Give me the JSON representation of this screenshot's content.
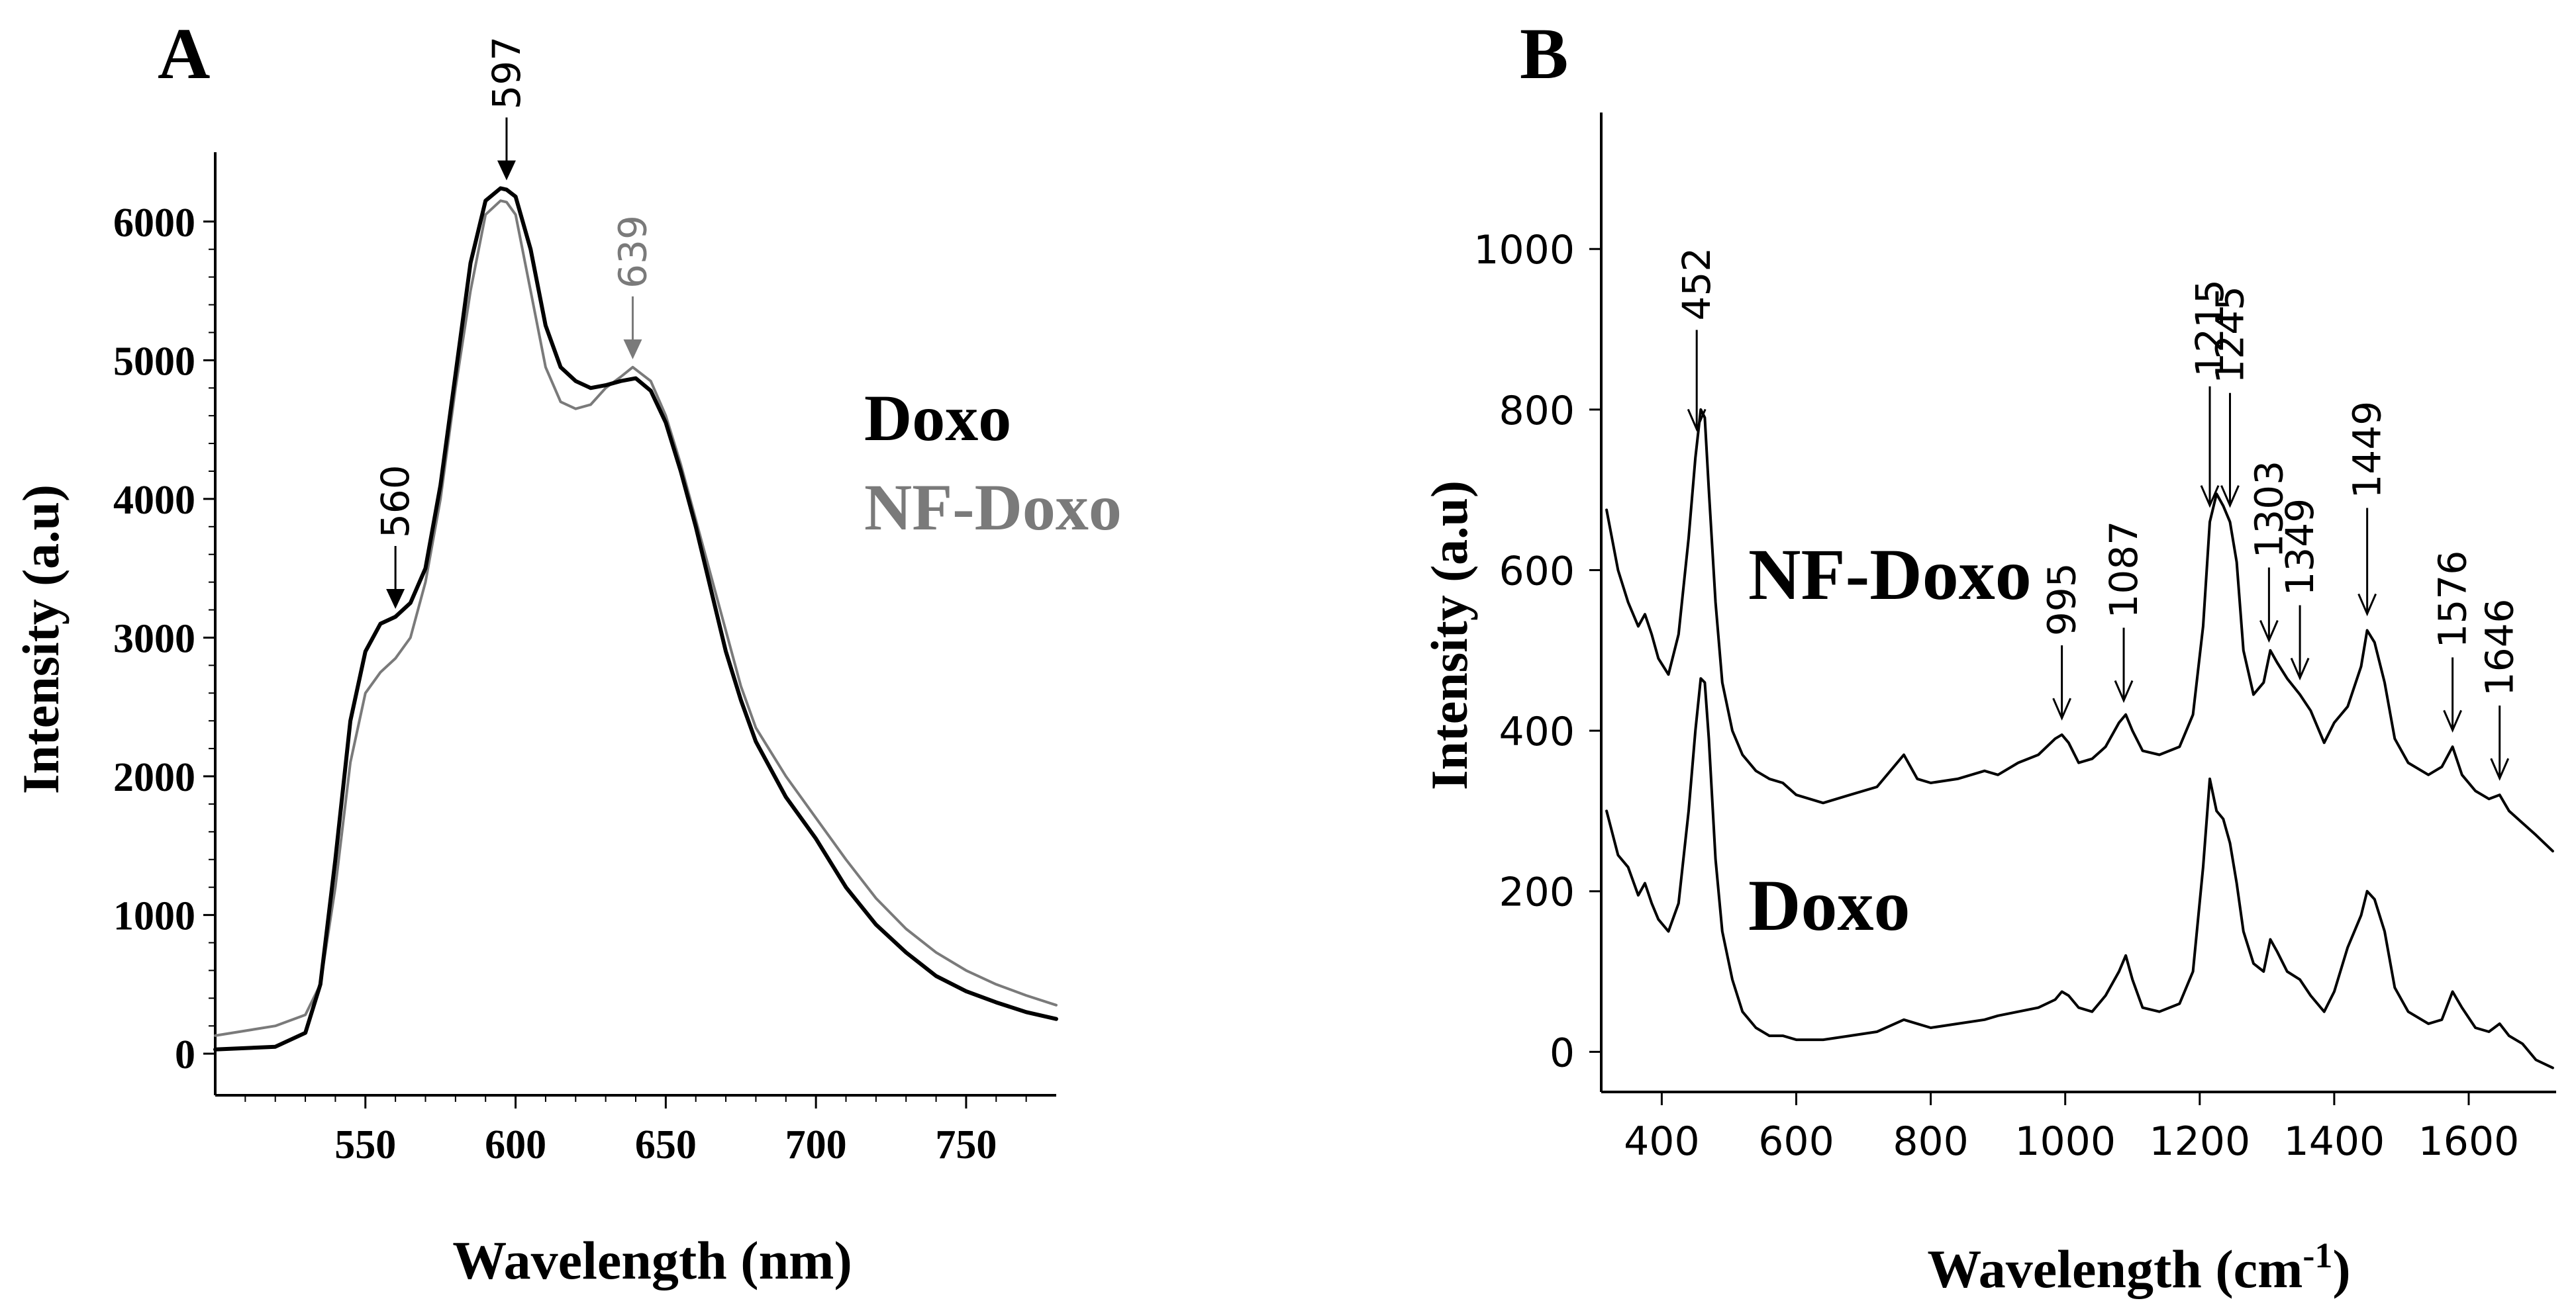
{
  "figure": {
    "colors": {
      "black": "#000000",
      "gray": "#7a7a7a"
    }
  },
  "chart_data": [
    {
      "panel": "A",
      "type": "line",
      "xlabel": "Wavelength (nm)",
      "ylabel": "Intensity (a.u)",
      "xlim": [
        500,
        780
      ],
      "ylim": [
        -300,
        6500
      ],
      "xticks": [
        550,
        600,
        650,
        700,
        750
      ],
      "yticks": [
        0,
        1000,
        2000,
        3000,
        4000,
        5000,
        6000
      ],
      "legend": [
        {
          "label": "Doxo",
          "color": "#000000"
        },
        {
          "label": "NF-Doxo",
          "color": "#7a7a7a"
        }
      ],
      "legend_placement": "right",
      "series": [
        {
          "name": "Doxo",
          "color": "#000000",
          "x": [
            500,
            520,
            530,
            535,
            540,
            545,
            550,
            555,
            560,
            565,
            570,
            575,
            580,
            585,
            590,
            595,
            597,
            600,
            605,
            610,
            615,
            620,
            625,
            630,
            635,
            640,
            645,
            650,
            655,
            660,
            665,
            670,
            675,
            680,
            690,
            700,
            710,
            720,
            730,
            740,
            750,
            760,
            770,
            780
          ],
          "y": [
            30,
            50,
            150,
            500,
            1400,
            2400,
            2900,
            3100,
            3150,
            3250,
            3500,
            4100,
            4900,
            5700,
            6150,
            6240,
            6230,
            6180,
            5800,
            5250,
            4950,
            4850,
            4800,
            4820,
            4850,
            4870,
            4780,
            4550,
            4200,
            3800,
            3350,
            2900,
            2550,
            2250,
            1850,
            1550,
            1200,
            930,
            730,
            560,
            450,
            370,
            300,
            250
          ]
        },
        {
          "name": "NF-Doxo",
          "color": "#7a7a7a",
          "x": [
            500,
            520,
            530,
            535,
            540,
            545,
            550,
            555,
            560,
            565,
            570,
            575,
            580,
            585,
            590,
            595,
            597,
            600,
            605,
            610,
            615,
            620,
            625,
            630,
            635,
            639,
            645,
            650,
            655,
            660,
            665,
            670,
            675,
            680,
            690,
            700,
            710,
            720,
            730,
            740,
            750,
            760,
            770,
            780
          ],
          "y": [
            130,
            200,
            280,
            500,
            1200,
            2100,
            2600,
            2750,
            2850,
            3000,
            3400,
            4000,
            4800,
            5500,
            6050,
            6150,
            6140,
            6050,
            5500,
            4950,
            4700,
            4650,
            4680,
            4800,
            4880,
            4950,
            4850,
            4600,
            4250,
            3850,
            3450,
            3050,
            2650,
            2350,
            2000,
            1700,
            1400,
            1120,
            900,
            730,
            600,
            500,
            420,
            350
          ]
        }
      ],
      "annotations": [
        {
          "label": "560",
          "x": 560,
          "y": 3150,
          "color": "#000000"
        },
        {
          "label": "597",
          "x": 597,
          "y": 6240,
          "color": "#000000"
        },
        {
          "label": "639",
          "x": 639,
          "y": 4950,
          "color": "#7a7a7a"
        }
      ]
    },
    {
      "panel": "B",
      "type": "line",
      "xlabel": "Wavelength (cm",
      "xlabel_superscript": "-1",
      "xlabel_suffix": ")",
      "ylabel": "Intensity (a.u)",
      "xlim": [
        310,
        1730
      ],
      "ylim": [
        -50,
        1170
      ],
      "xticks": [
        400,
        600,
        800,
        1000,
        1200,
        1400,
        1600
      ],
      "yticks": [
        0,
        200,
        400,
        600,
        800,
        1000
      ],
      "series_labels": [
        {
          "label": "NF-Doxo",
          "color": "#000000"
        },
        {
          "label": "Doxo",
          "color": "#000000"
        }
      ],
      "series": [
        {
          "name": "NF-Doxo",
          "color": "#000000",
          "x": [
            318,
            335,
            350,
            365,
            375,
            385,
            395,
            410,
            425,
            440,
            450,
            458,
            464,
            470,
            480,
            490,
            505,
            520,
            540,
            560,
            580,
            600,
            640,
            680,
            720,
            760,
            780,
            800,
            840,
            880,
            900,
            930,
            960,
            985,
            995,
            1005,
            1020,
            1040,
            1060,
            1080,
            1090,
            1100,
            1115,
            1140,
            1170,
            1190,
            1205,
            1215,
            1225,
            1235,
            1245,
            1255,
            1265,
            1280,
            1295,
            1305,
            1315,
            1330,
            1349,
            1365,
            1385,
            1400,
            1420,
            1440,
            1449,
            1460,
            1475,
            1490,
            1510,
            1540,
            1560,
            1576,
            1590,
            1610,
            1630,
            1646,
            1660,
            1680,
            1700,
            1725
          ],
          "y": [
            675,
            600,
            560,
            530,
            545,
            520,
            490,
            470,
            520,
            640,
            740,
            800,
            790,
            700,
            560,
            460,
            400,
            370,
            350,
            340,
            335,
            320,
            310,
            320,
            330,
            370,
            340,
            335,
            340,
            350,
            345,
            360,
            370,
            390,
            395,
            385,
            360,
            365,
            380,
            410,
            420,
            400,
            375,
            370,
            380,
            420,
            530,
            660,
            695,
            680,
            660,
            610,
            500,
            445,
            460,
            500,
            485,
            465,
            445,
            425,
            385,
            410,
            430,
            480,
            525,
            510,
            460,
            390,
            360,
            345,
            355,
            380,
            345,
            325,
            315,
            320,
            300,
            285,
            270,
            250
          ]
        },
        {
          "name": "Doxo",
          "color": "#000000",
          "x": [
            318,
            335,
            350,
            365,
            375,
            385,
            395,
            410,
            425,
            440,
            450,
            458,
            464,
            470,
            480,
            490,
            505,
            520,
            540,
            560,
            580,
            600,
            640,
            680,
            720,
            760,
            780,
            800,
            840,
            880,
            900,
            930,
            960,
            985,
            995,
            1005,
            1020,
            1040,
            1060,
            1080,
            1090,
            1100,
            1115,
            1140,
            1170,
            1190,
            1205,
            1215,
            1225,
            1235,
            1245,
            1255,
            1265,
            1280,
            1295,
            1305,
            1315,
            1330,
            1349,
            1365,
            1385,
            1400,
            1420,
            1440,
            1449,
            1460,
            1475,
            1490,
            1510,
            1540,
            1560,
            1576,
            1590,
            1610,
            1630,
            1646,
            1660,
            1680,
            1700,
            1725
          ],
          "y": [
            300,
            245,
            230,
            195,
            210,
            185,
            165,
            150,
            185,
            300,
            400,
            465,
            460,
            390,
            240,
            150,
            90,
            50,
            30,
            20,
            20,
            15,
            15,
            20,
            25,
            40,
            35,
            30,
            35,
            40,
            45,
            50,
            55,
            65,
            75,
            70,
            55,
            50,
            70,
            100,
            120,
            90,
            55,
            50,
            60,
            100,
            230,
            340,
            300,
            290,
            260,
            210,
            150,
            110,
            100,
            140,
            125,
            100,
            90,
            70,
            50,
            75,
            130,
            170,
            200,
            190,
            150,
            80,
            50,
            35,
            40,
            75,
            55,
            30,
            25,
            35,
            20,
            10,
            -10,
            -20
          ]
        }
      ],
      "annotations": [
        {
          "label": "452",
          "x": 452
        },
        {
          "label": "995",
          "x": 995
        },
        {
          "label": "1087",
          "x": 1087
        },
        {
          "label": "1215",
          "x": 1215
        },
        {
          "label": "1245",
          "x": 1245
        },
        {
          "label": "1303",
          "x": 1303
        },
        {
          "label": "1349",
          "x": 1349
        },
        {
          "label": "1449",
          "x": 1449
        },
        {
          "label": "1576",
          "x": 1576
        },
        {
          "label": "1646",
          "x": 1646
        }
      ]
    }
  ]
}
